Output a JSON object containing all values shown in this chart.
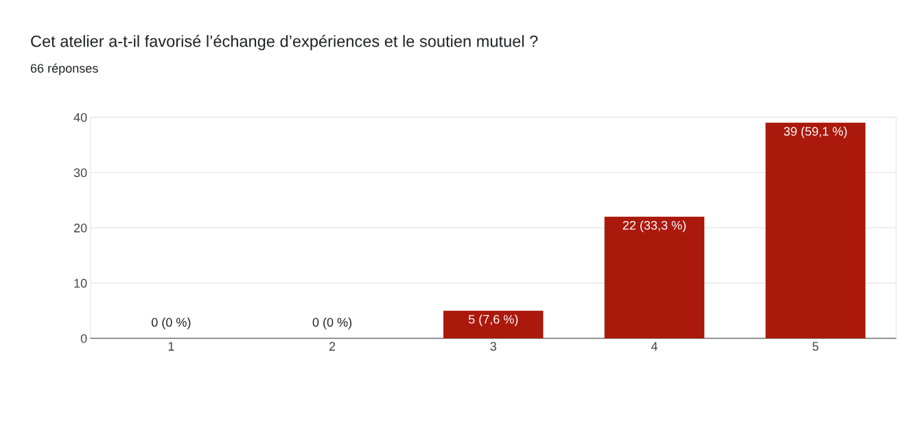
{
  "chart_data": {
    "type": "bar",
    "title": "Cet atelier a-t-il favorisé l’échange d’expériences et le soutien mutuel ?",
    "subtitle": "66 réponses",
    "categories": [
      "1",
      "2",
      "3",
      "4",
      "5"
    ],
    "values": [
      0,
      0,
      5,
      22,
      39
    ],
    "value_labels": [
      "0 (0 %)",
      "0 (0 %)",
      "5 (7,6 %)",
      "22 (33,3 %)",
      "39 (59,1 %)"
    ],
    "color": "#ab190d",
    "ylim": [
      0,
      40
    ],
    "yticks": [
      0,
      10,
      20,
      30,
      40
    ],
    "grid": "y"
  }
}
